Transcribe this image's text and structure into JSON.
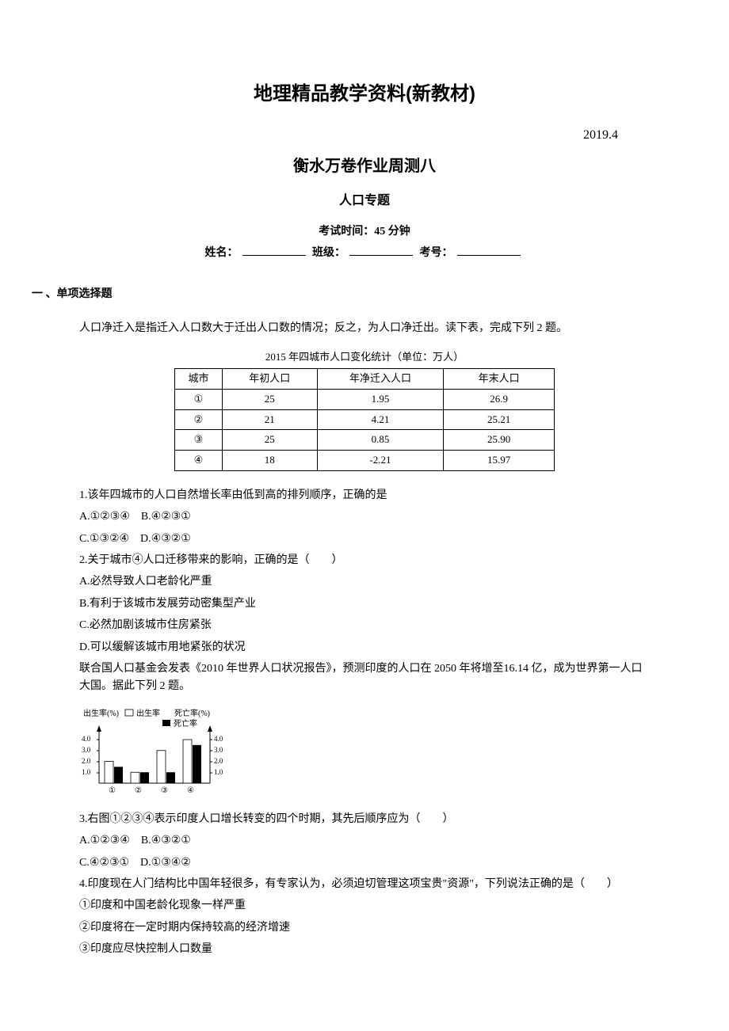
{
  "title_main": "地理精品教学资料(新教材)",
  "date": "2019.4",
  "title_sub": "衡水万卷作业周测八",
  "title_topic": "人口专题",
  "exam_time": "考试时间：45 分钟",
  "info": {
    "name_label": "姓名：",
    "class_label": "班级：",
    "number_label": "考号："
  },
  "section1_header": "一  、单项选择题",
  "intro1": "人口净迁入是指迁入人口数大于迁出人口数的情况；反之，为人口净迁出。读下表，完成下列 2 题。",
  "table": {
    "caption": "2015 年四城市人口变化统计（单位：万人）",
    "headers": [
      "城市",
      "年初人口",
      "年净迁入人口",
      "年末人口"
    ],
    "rows": [
      [
        "①",
        "25",
        "1.95",
        "26.9"
      ],
      [
        "②",
        "21",
        "4.21",
        "25.21"
      ],
      [
        "③",
        "25",
        "0.85",
        "25.90"
      ],
      [
        "④",
        "18",
        "-2.21",
        "15.97"
      ]
    ]
  },
  "q1": {
    "text": "1.该年四城市的人口自然增长率由低到高的排列顺序，正确的是",
    "optA": "A.①②③④　B.④②③①",
    "optC": "C.①③②④　D.④③②①"
  },
  "q2": {
    "text": "2.关于城市④人口迁移带来的影响，正确的是（　　）",
    "optA": "A.必然导致人口老龄化严重",
    "optB": "B.有利于该城市发展劳动密集型产业",
    "optC": "C.必然加剧该城市住房紧张",
    "optD": "D.可以缓解该城市用地紧张的状况"
  },
  "intro2": "联合国人口基金会发表《2010 年世界人口状况报告》，预测印度的人口在 2050 年将增至16.14 亿，成为世界第一人口大国。据此下列 2 题。",
  "chart": {
    "left_label": "出生率(%)",
    "right_label": "死亡率(%)",
    "legend_birth": "出生率",
    "legend_death": "死亡率",
    "y_ticks": [
      "4.0",
      "3.0",
      "2.0",
      "1.0"
    ],
    "x_labels": [
      "①",
      "②",
      "③",
      "④"
    ],
    "birth_values": [
      2.0,
      1.0,
      3.0,
      4.0
    ],
    "death_values": [
      1.5,
      1.0,
      1.0,
      3.5
    ],
    "birth_color": "#ffffff",
    "death_color": "#000000",
    "axis_color": "#000000"
  },
  "q3": {
    "text": "3.右图①②③④表示印度人口增长转变的四个时期，其先后顺序应为（　　）",
    "optA": "A.①②③④　B.④③②①",
    "optC": "C.④②③①　D.①③④②"
  },
  "q4": {
    "text": "4.印度现在人门结构比中国年轻很多，有专家认为，必须迫切管理这项宝贵\"资源\"，下列说法正确的是（　　）",
    "opt1": "①印度和中国老龄化现象一样严重",
    "opt2": "②印度将在一定时期内保持较高的经济增速",
    "opt3": "③印度应尽快控制人口数量"
  }
}
